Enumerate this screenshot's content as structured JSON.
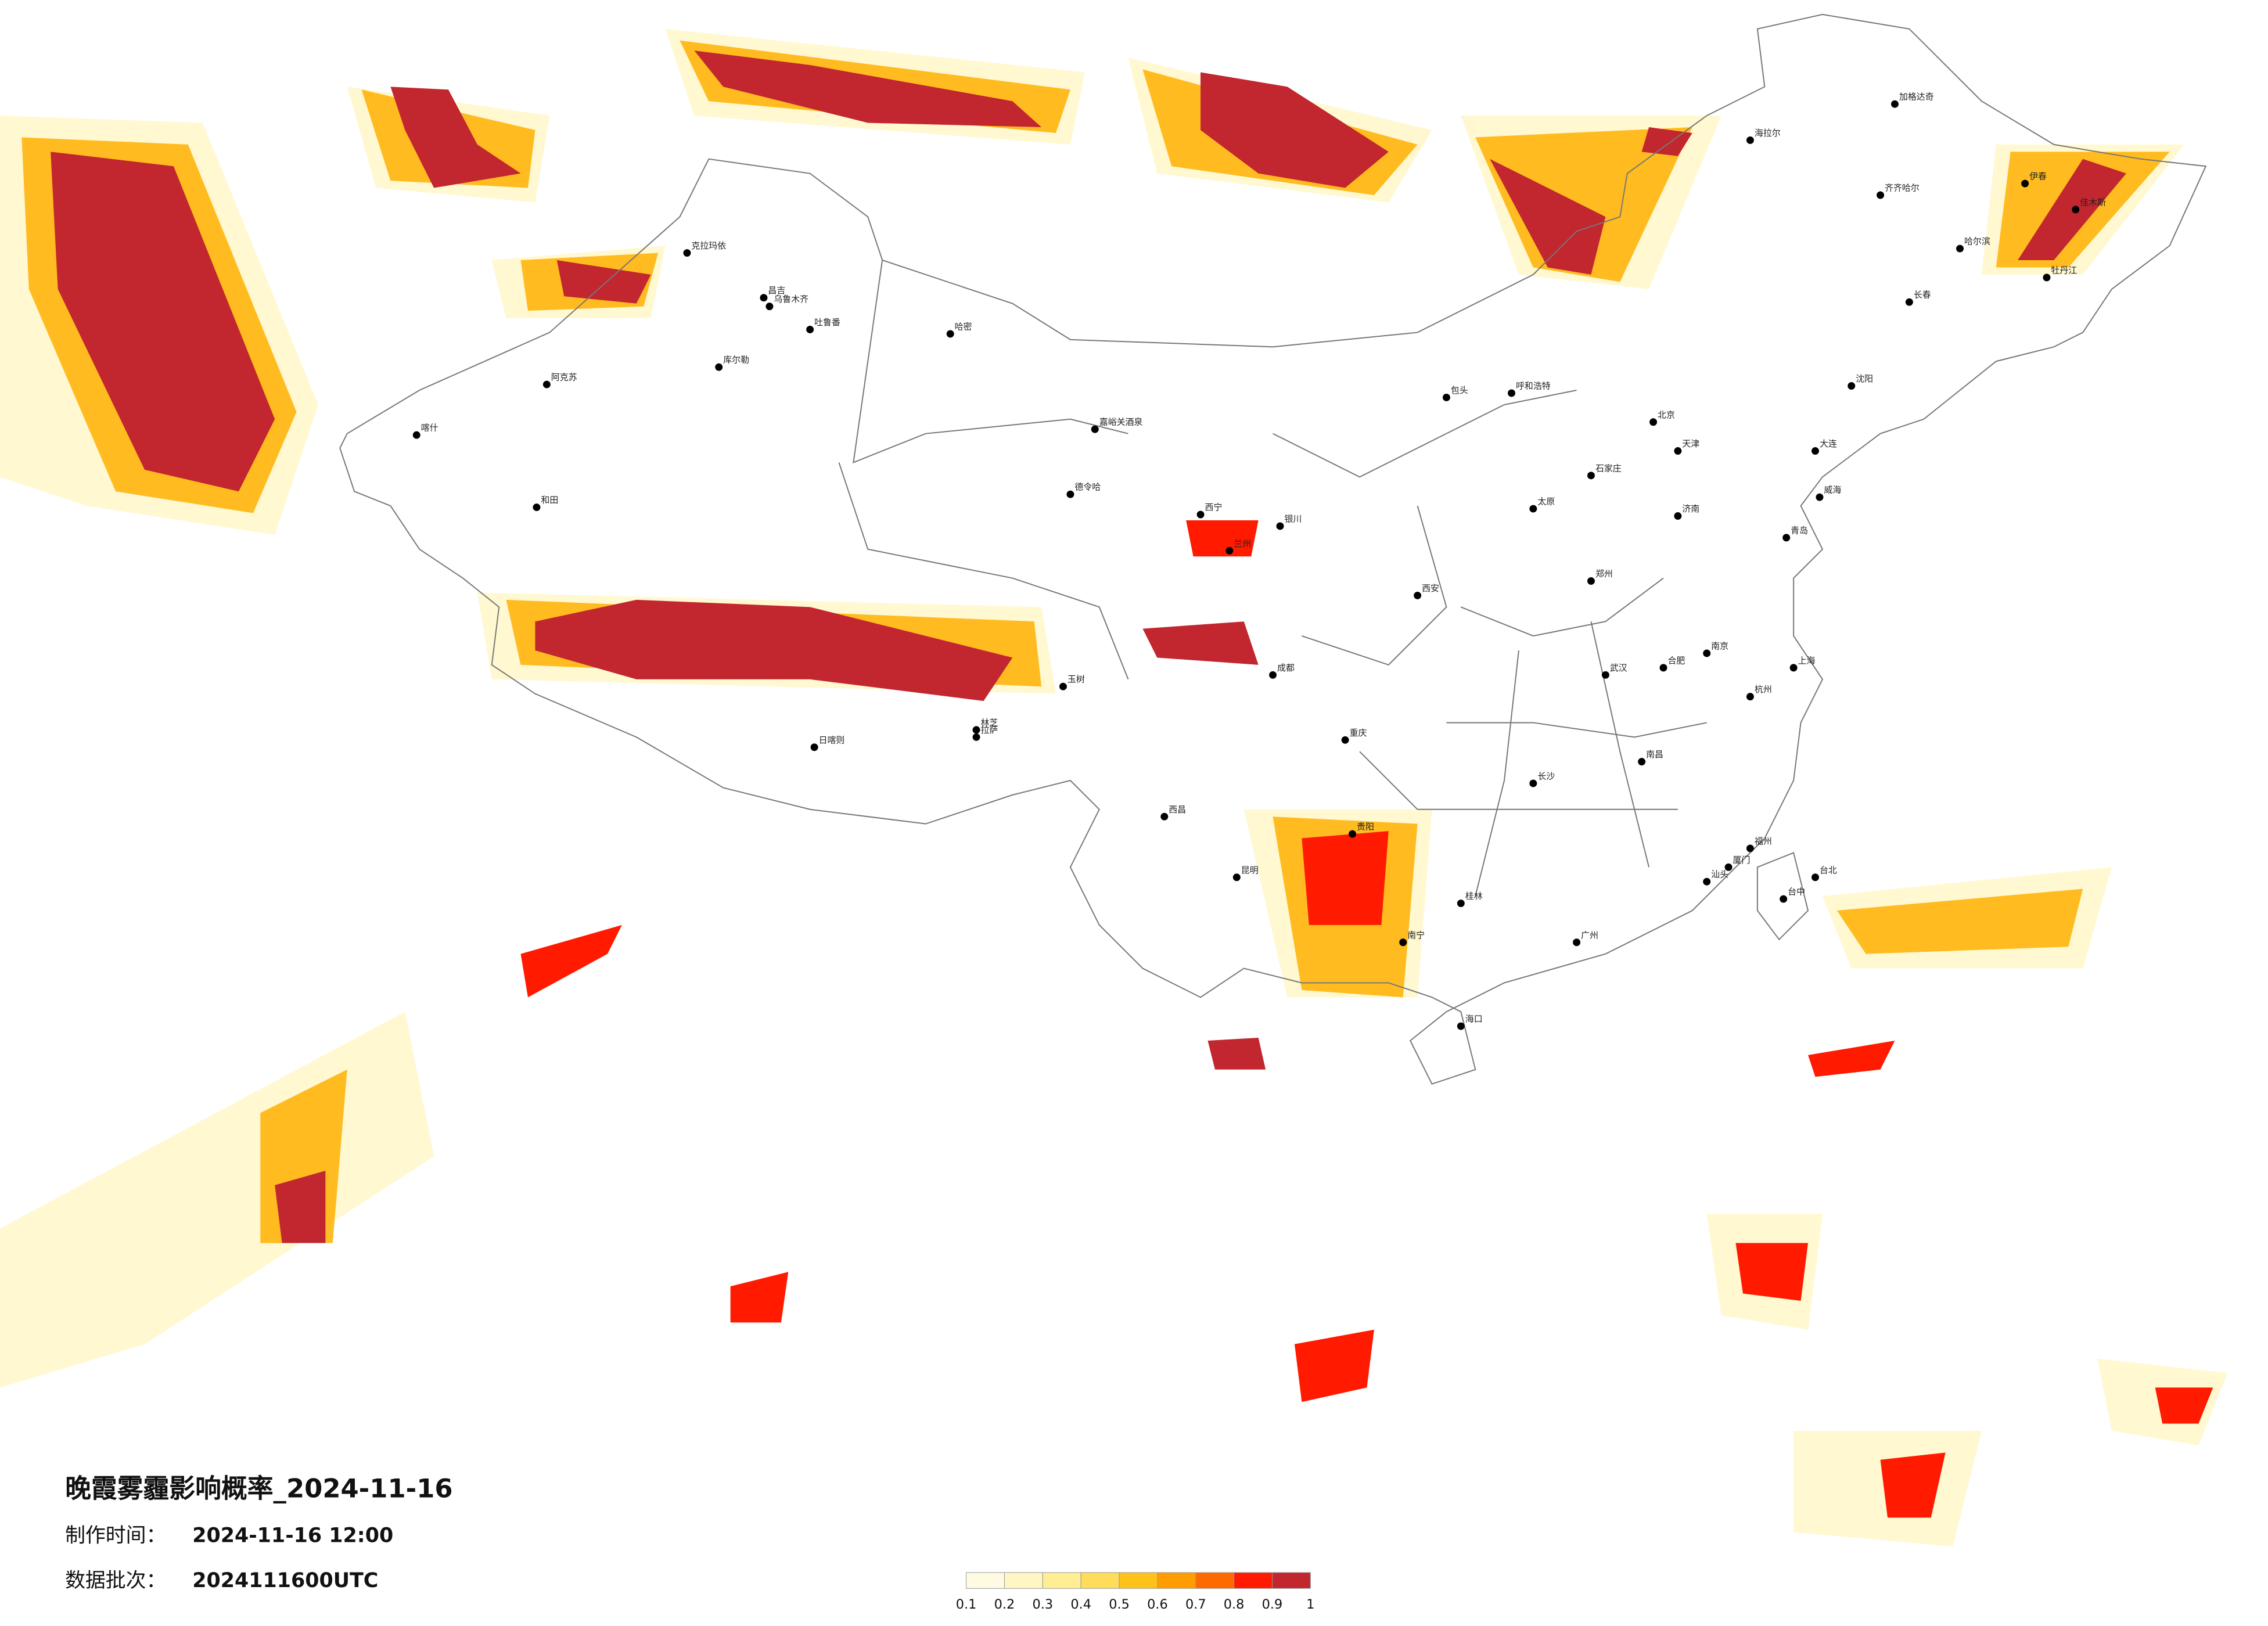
{
  "title": "晚霞雾霾影响概率_2024-11-16",
  "made_label": "制作时间：",
  "made_time": "2024-11-16 12:00",
  "batch_label": "数据批次：",
  "batch": "2024111600UTC",
  "legend": {
    "ticks": [
      0.1,
      0.2,
      0.3,
      0.4,
      0.5,
      0.6,
      0.7,
      0.8,
      0.9,
      1
    ],
    "colors": [
      "#fffbe3",
      "#fff6c4",
      "#ffee94",
      "#ffdc5a",
      "#ffc21a",
      "#ff9d00",
      "#ff6a00",
      "#ff1a00",
      "#c2262f"
    ]
  },
  "cities": [
    "克拉玛依",
    "昌吉",
    "乌鲁木齐",
    "吐鲁番",
    "哈密",
    "库尔勒",
    "阿克苏",
    "喀什",
    "和田",
    "嘉峪关酒泉",
    "德令哈",
    "西宁",
    "兰州",
    "银川",
    "呼和浩特",
    "包头",
    "北京",
    "天津",
    "石家庄",
    "太原",
    "济南",
    "郑州",
    "西安",
    "成都",
    "重庆",
    "贵阳",
    "昆明",
    "南宁",
    "广州",
    "长沙",
    "武汉",
    "南昌",
    "杭州",
    "上海",
    "南京",
    "合肥",
    "福州",
    "台北",
    "台中",
    "海口",
    "拉萨",
    "日喀则",
    "哈尔滨",
    "长春",
    "沈阳",
    "大连",
    "齐齐哈尔",
    "海拉尔",
    "加格达奇",
    "佳木斯",
    "牡丹江",
    "伊春",
    "青岛",
    "威海",
    "林芝",
    "玉树",
    "西昌",
    "桂林",
    "厦门",
    "汕头"
  ]
}
